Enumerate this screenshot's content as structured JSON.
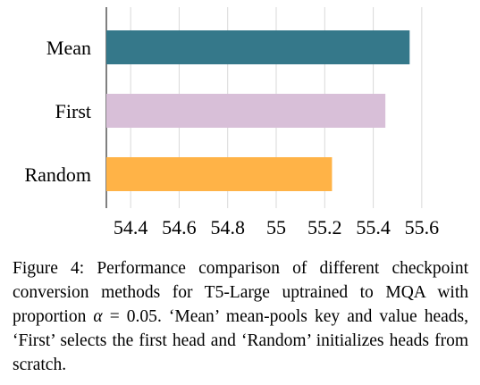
{
  "chart_data": {
    "type": "bar",
    "orientation": "horizontal",
    "categories": [
      "Mean",
      "First",
      "Random"
    ],
    "values": [
      55.55,
      55.45,
      55.23
    ],
    "colors": [
      "#35788a",
      "#d8bfd8",
      "#ffb347"
    ],
    "title": "",
    "xlabel": "",
    "ylabel": "",
    "xlim": [
      54.3,
      55.7
    ],
    "xticks": [
      54.4,
      54.6,
      54.8,
      55,
      55.2,
      55.4,
      55.6
    ],
    "xtick_labels": [
      "54.4",
      "54.6",
      "54.8",
      "55",
      "55.2",
      "55.4",
      "55.6"
    ],
    "grid": "vertical"
  },
  "caption": {
    "label": "Figure 4: Performance comparison of different checkpoint conversion methods for T5-Large uptrained to MQA with proportion ",
    "alpha_symbol": "α",
    "equals": " = 0.05",
    "rest": ". ‘Mean’ mean-pools key and value heads, ‘First’ selects the first head and ‘Random’ initializes heads from scratch."
  }
}
